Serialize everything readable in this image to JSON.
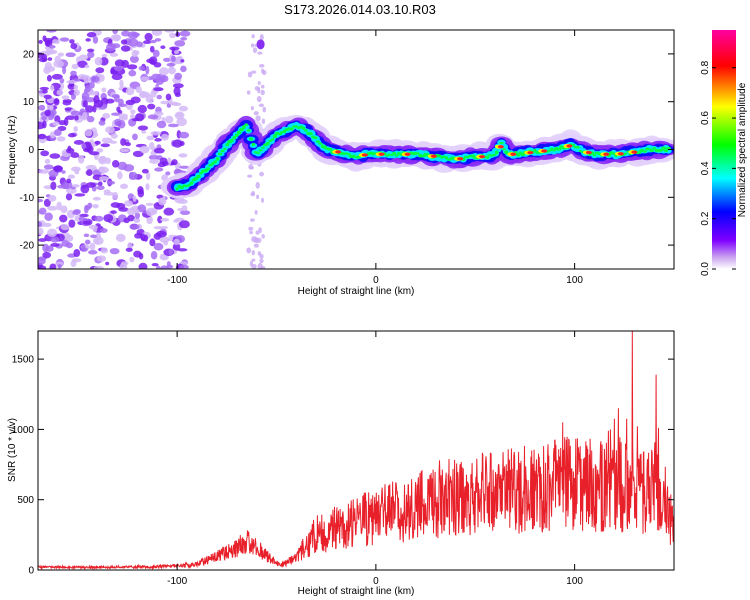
{
  "title": "S173.2026.014.03.10.R03",
  "chart_data": [
    {
      "type": "heatmap",
      "name": "spectrogram",
      "xlabel": "Height of straight line (km)",
      "ylabel": "Frequency (Hz)",
      "xlim": [
        -170,
        150
      ],
      "ylim": [
        -25,
        25
      ],
      "xticks": [
        -100,
        0,
        100
      ],
      "xtick_labels": [
        "-100",
        "0",
        "100"
      ],
      "yticks": [
        -20,
        -10,
        0,
        10,
        20
      ],
      "ytick_labels": [
        "-20",
        "-10",
        "0",
        "10",
        "20"
      ],
      "colorbar": {
        "label": "Normalized spectral amplitude",
        "range": [
          0,
          0.95
        ],
        "ticks": [
          0.0,
          0.2,
          0.4,
          0.6,
          0.8
        ],
        "tick_labels": [
          "0.0",
          "0.2",
          "0.4",
          "0.6",
          "0.8"
        ],
        "colormap": [
          "#ffffff",
          "#7f00ff",
          "#0000ff",
          "#00ffff",
          "#00ff00",
          "#ffff00",
          "#ff0000",
          "#ff00a0"
        ]
      },
      "ridge": {
        "x": [
          -100,
          -95,
          -90,
          -85,
          -80,
          -75,
          -70,
          -65,
          -60,
          -55,
          -50,
          -45,
          -40,
          -35,
          -30,
          -25,
          -20,
          -15,
          -10,
          -5,
          0,
          5,
          10,
          20,
          30,
          40,
          50,
          55,
          60,
          63,
          66,
          70,
          80,
          90,
          95,
          98,
          100,
          105,
          110,
          120,
          130,
          140,
          148
        ],
        "y": [
          -8,
          -7.5,
          -6,
          -4,
          -2,
          1,
          3,
          5,
          -1,
          1,
          3,
          4,
          5,
          4,
          2,
          0,
          -0.5,
          -1,
          -1.5,
          -1,
          -1,
          -1,
          -1,
          -1,
          -1.5,
          -2,
          -1.5,
          -1.5,
          -1,
          1.5,
          -1,
          -1,
          -0.5,
          0,
          0.5,
          1,
          0.5,
          -0.5,
          -1,
          -1,
          -0.5,
          0,
          0
        ]
      },
      "noise_region_x": [
        -170,
        -100
      ],
      "artifact_column_x": -60
    },
    {
      "type": "line",
      "name": "snr",
      "xlabel": "Height of straight line (km)",
      "ylabel": "SNR (10 * v/v)",
      "xlim": [
        -170,
        150
      ],
      "ylim": [
        0,
        1700
      ],
      "xticks": [
        -100,
        0,
        100
      ],
      "xtick_labels": [
        "-100",
        "0",
        "100"
      ],
      "yticks": [
        0,
        500,
        1000,
        1500
      ],
      "ytick_labels": [
        "0",
        "500",
        "1000",
        "1500"
      ],
      "color": "#e8202a",
      "envelope_x": [
        -170,
        -140,
        -110,
        -90,
        -80,
        -70,
        -65,
        -60,
        -55,
        -48,
        -40,
        -35,
        -30,
        -20,
        -10,
        0,
        10,
        20,
        30,
        40,
        50,
        60,
        70,
        80,
        90,
        100,
        110,
        120,
        125,
        128,
        130,
        135,
        140,
        145,
        150
      ],
      "envelope_y": [
        20,
        20,
        22,
        40,
        100,
        160,
        200,
        160,
        100,
        30,
        80,
        180,
        250,
        300,
        350,
        380,
        420,
        450,
        500,
        520,
        540,
        550,
        560,
        580,
        600,
        620,
        600,
        580,
        560,
        700,
        600,
        550,
        600,
        450,
        300
      ],
      "peaks": [
        {
          "x": 129,
          "y": 1700
        },
        {
          "x": 141,
          "y": 1390
        },
        {
          "x": 122,
          "y": 1150
        },
        {
          "x": 94,
          "y": 1050
        },
        {
          "x": 118,
          "y": 1000
        }
      ]
    }
  ]
}
